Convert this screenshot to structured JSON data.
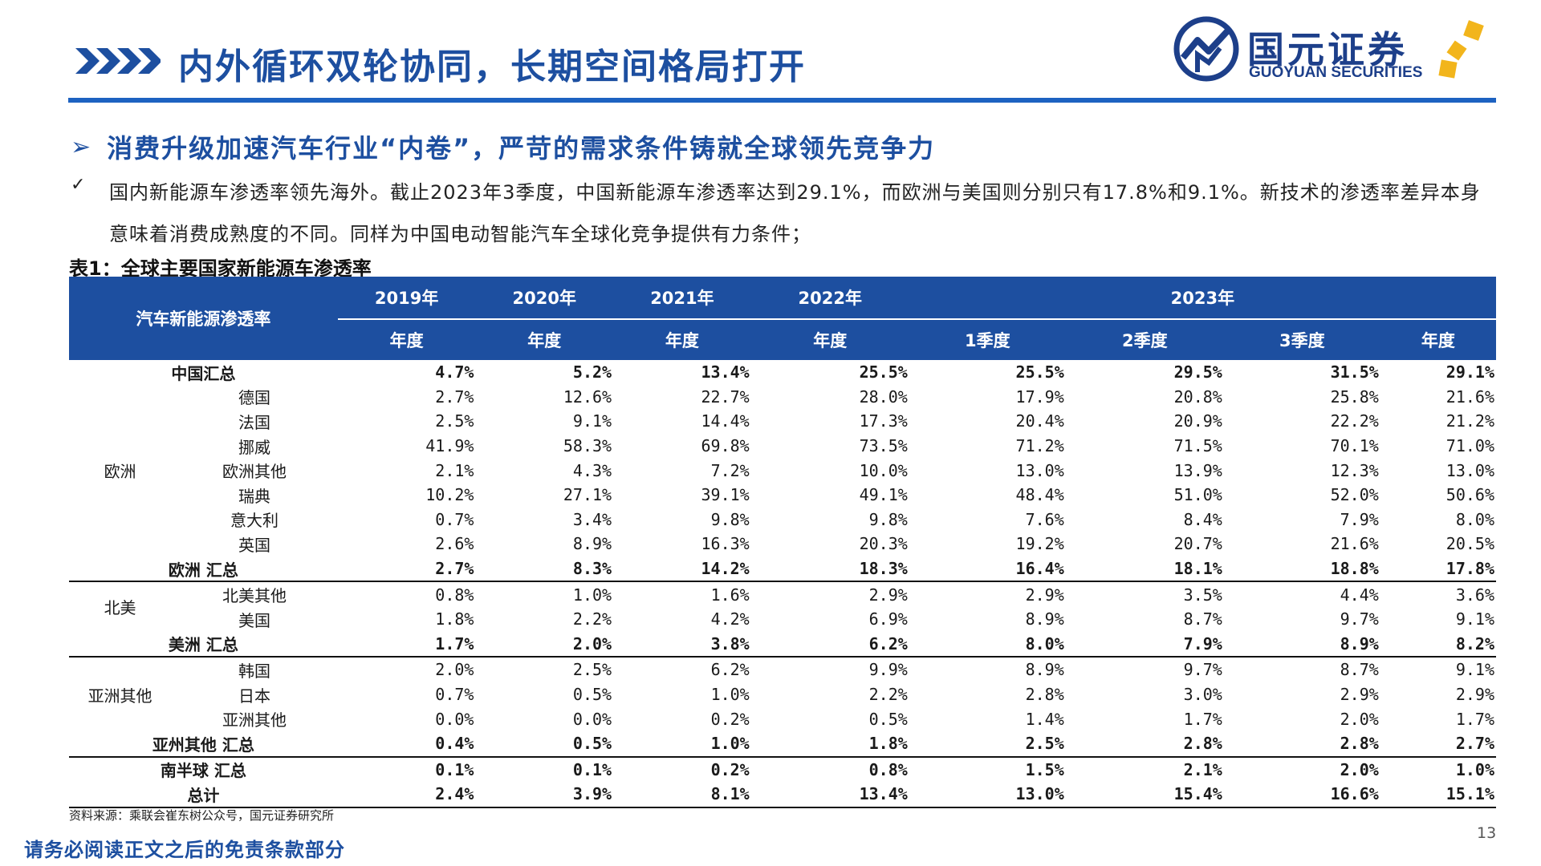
{
  "header": {
    "title": "内外循环双轮协同，长期空间格局打开",
    "logo_cn": "国元证券",
    "logo_en": "GUOYUAN SECURITIES"
  },
  "headline": {
    "arrow": "➢",
    "text": "消费升级加速汽车行业“内卷”，严苛的需求条件铸就全球领先竞争力"
  },
  "bullet": {
    "mark": "✓",
    "text": "国内新能源车渗透率领先海外。截止2023年3季度，中国新能源车渗透率达到29.1%，而欧洲与美国则分别只有17.8%和9.1%。新技术的渗透率差异本身意味着消费成熟度的不同。同样为中国电动智能汽车全球化竞争提供有力条件；"
  },
  "table": {
    "title": "表1：全球主要国家新能源车渗透率",
    "label_header": "汽车新能源渗透率",
    "years": [
      "2019年",
      "2020年",
      "2021年",
      "2022年",
      "2023年"
    ],
    "periods": [
      "年度",
      "年度",
      "年度",
      "年度",
      "1季度",
      "2季度",
      "3季度",
      "年度"
    ],
    "rows": {
      "china_total": {
        "name": "中国汇总",
        "values": [
          "4.7%",
          "5.2%",
          "13.4%",
          "25.5%",
          "25.5%",
          "29.5%",
          "31.5%",
          "29.1%"
        ]
      },
      "europe": {
        "region": "欧洲",
        "countries": [
          {
            "name": "德国",
            "values": [
              "2.7%",
              "12.6%",
              "22.7%",
              "28.0%",
              "17.9%",
              "20.8%",
              "25.8%",
              "21.6%"
            ]
          },
          {
            "name": "法国",
            "values": [
              "2.5%",
              "9.1%",
              "14.4%",
              "17.3%",
              "20.4%",
              "20.9%",
              "22.2%",
              "21.2%"
            ]
          },
          {
            "name": "挪威",
            "values": [
              "41.9%",
              "58.3%",
              "69.8%",
              "73.5%",
              "71.2%",
              "71.5%",
              "70.1%",
              "71.0%"
            ]
          },
          {
            "name": "欧洲其他",
            "values": [
              "2.1%",
              "4.3%",
              "7.2%",
              "10.0%",
              "13.0%",
              "13.9%",
              "12.3%",
              "13.0%"
            ]
          },
          {
            "name": "瑞典",
            "values": [
              "10.2%",
              "27.1%",
              "39.1%",
              "49.1%",
              "48.4%",
              "51.0%",
              "52.0%",
              "50.6%"
            ]
          },
          {
            "name": "意大利",
            "values": [
              "0.7%",
              "3.4%",
              "9.8%",
              "9.8%",
              "7.6%",
              "8.4%",
              "7.9%",
              "8.0%"
            ]
          },
          {
            "name": "英国",
            "values": [
              "2.6%",
              "8.9%",
              "16.3%",
              "20.3%",
              "19.2%",
              "20.7%",
              "21.6%",
              "20.5%"
            ]
          }
        ],
        "total": {
          "name": "欧洲 汇总",
          "values": [
            "2.7%",
            "8.3%",
            "14.2%",
            "18.3%",
            "16.4%",
            "18.1%",
            "18.8%",
            "17.8%"
          ]
        }
      },
      "north_america": {
        "region": "北美",
        "countries": [
          {
            "name": "北美其他",
            "values": [
              "0.8%",
              "1.0%",
              "1.6%",
              "2.9%",
              "2.9%",
              "3.5%",
              "4.4%",
              "3.6%"
            ]
          },
          {
            "name": "美国",
            "values": [
              "1.8%",
              "2.2%",
              "4.2%",
              "6.9%",
              "8.9%",
              "8.7%",
              "9.7%",
              "9.1%"
            ]
          }
        ],
        "total": {
          "name": "美洲 汇总",
          "values": [
            "1.7%",
            "2.0%",
            "3.8%",
            "6.2%",
            "8.0%",
            "7.9%",
            "8.9%",
            "8.2%"
          ]
        }
      },
      "asia_other": {
        "region": "亚洲其他",
        "countries": [
          {
            "name": "韩国",
            "values": [
              "2.0%",
              "2.5%",
              "6.2%",
              "9.9%",
              "8.9%",
              "9.7%",
              "8.7%",
              "9.1%"
            ]
          },
          {
            "name": "日本",
            "values": [
              "0.7%",
              "0.5%",
              "1.0%",
              "2.2%",
              "2.8%",
              "3.0%",
              "2.9%",
              "2.9%"
            ]
          },
          {
            "name": "亚洲其他",
            "values": [
              "0.0%",
              "0.0%",
              "0.2%",
              "0.5%",
              "1.4%",
              "1.7%",
              "2.0%",
              "1.7%"
            ]
          }
        ],
        "total": {
          "name": "亚州其他 汇总",
          "values": [
            "0.4%",
            "0.5%",
            "1.0%",
            "1.8%",
            "2.5%",
            "2.8%",
            "2.8%",
            "2.7%"
          ]
        }
      },
      "southern_total": {
        "name": "南半球 汇总",
        "values": [
          "0.1%",
          "0.1%",
          "0.2%",
          "0.8%",
          "1.5%",
          "2.1%",
          "2.0%",
          "1.0%"
        ]
      },
      "grand_total": {
        "name": "总计",
        "values": [
          "2.4%",
          "3.9%",
          "8.1%",
          "13.4%",
          "13.0%",
          "15.4%",
          "16.6%",
          "15.1%"
        ]
      }
    }
  },
  "footer": {
    "source": "资料来源：乘联会崔东树公众号，国元证券研究所",
    "disclaimer": "请务必阅读正文之后的免责条款部分",
    "page_number": "13"
  },
  "colors": {
    "brand_blue": "#1d4fa0",
    "header_rule": "#1d62c1",
    "logo_gold": "#f2b51c"
  }
}
